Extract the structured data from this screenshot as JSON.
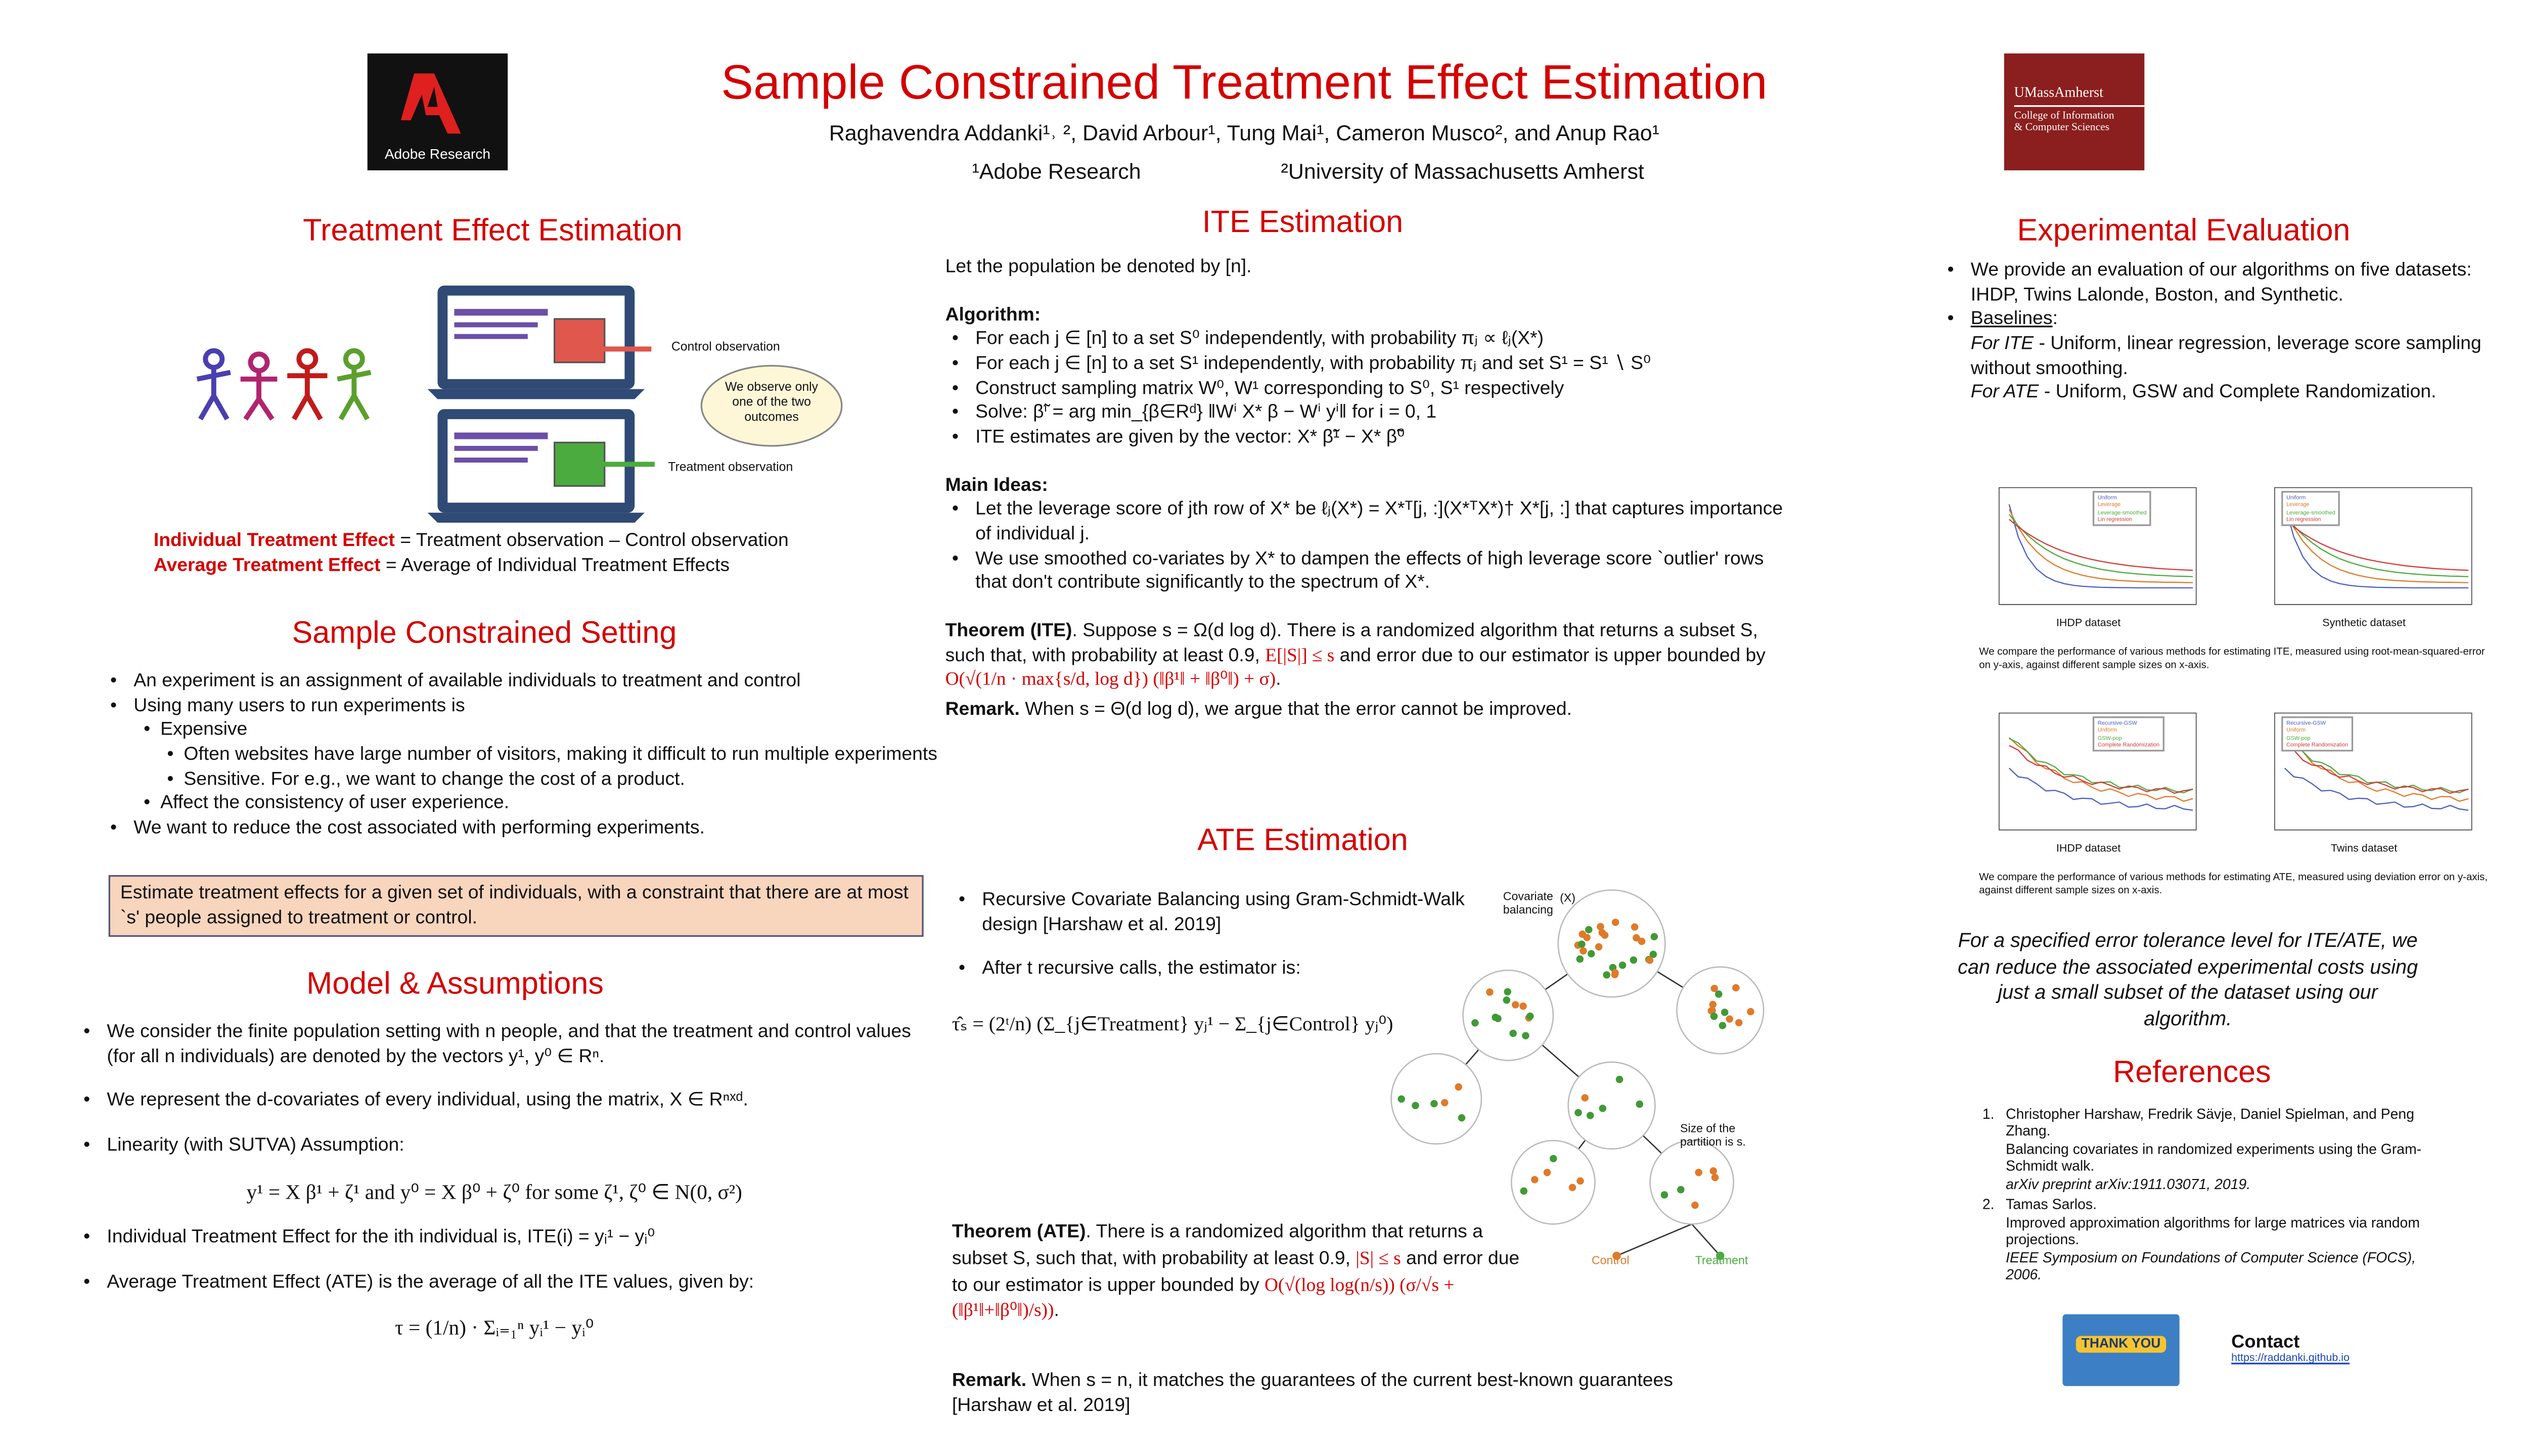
{
  "header": {
    "title": "Sample Constrained Treatment Effect Estimation",
    "authors": "Raghavendra Addanki¹˒ ², David Arbour¹, Tung Mai¹, Cameron Musco², and Anup Rao¹",
    "affiliations": [
      "¹Adobe Research",
      "²University of Massachusetts Amherst"
    ],
    "logo_left": "Adobe Research",
    "logo_right": [
      "UMassAmherst",
      "College of Information",
      "& Computer Sciences"
    ]
  },
  "left": {
    "treatment": {
      "title": "Treatment Effect Estimation",
      "figure_labels": [
        "Control observation",
        "We observe only one of the two outcomes",
        "Treatment observation"
      ],
      "definitions": [
        {
          "term": "Individual Treatment Effect",
          "text": " = Treatment observation – Control observation"
        },
        {
          "term": "Average Treatment Effect",
          "text": " = Average of Individual Treatment Effects"
        }
      ]
    },
    "setting": {
      "title": "Sample Constrained Setting",
      "bullets": [
        {
          "level": 1,
          "text": "An experiment is an assignment of available individuals to treatment and control"
        },
        {
          "level": 1,
          "text": "Using many users to run experiments is"
        },
        {
          "level": 2,
          "text": "Expensive"
        },
        {
          "level": 3,
          "text": "Often websites have large number of visitors, making it difficult to run multiple experiments"
        },
        {
          "level": 3,
          "text": "Sensitive. For e.g., we want to change the cost of a product."
        },
        {
          "level": 2,
          "text": "Affect the consistency of user experience."
        },
        {
          "level": 1,
          "text": "We want to reduce the cost associated with performing experiments."
        }
      ],
      "callout": "Estimate treatment effects for a given set of individuals, with a constraint that there are at most `s' people assigned to treatment or control."
    },
    "model": {
      "title": "Model & Assumptions",
      "items": [
        {
          "style": "bullet",
          "text": "We consider the finite population setting with n people, and that the treatment and control values (for all n individuals) are denoted by the vectors y¹, y⁰ ∈ Rⁿ."
        },
        {
          "style": "bullet",
          "text": "We represent the d-covariates of every individual, using the matrix, X ∈ Rⁿˣᵈ."
        },
        {
          "style": "bullet",
          "text": "Linearity (with SUTVA) Assumption:"
        },
        {
          "style": "equation",
          "text": "y¹ = X β¹ + ζ¹ and y⁰ = X β⁰ + ζ⁰ for some ζ¹, ζ⁰ ∈ N(0, σ²)"
        },
        {
          "style": "bullet",
          "text": "Individual Treatment Effect for the ith individual is, ITE(i) = yᵢ¹ − yᵢ⁰"
        },
        {
          "style": "bullet",
          "text": "Average Treatment Effect (ATE) is the average of all the ITE values, given by:"
        },
        {
          "style": "equation",
          "text": "τ = (1/n) · Σᵢ₌₁ⁿ yᵢ¹ − yᵢ⁰"
        }
      ]
    }
  },
  "middle": {
    "ite": {
      "title": "ITE Estimation",
      "intro": "Let the population be denoted by [n].",
      "algorithm_heading": "Algorithm:",
      "algorithm": [
        "For each j ∈ [n] to a set S⁰ independently, with probability πⱼ ∝ ℓⱼ(X*)",
        "For each j ∈ [n] to a set S¹ independently, with probability πⱼ and set S¹ = S¹ ∖ S⁰",
        "Construct sampling matrix W⁰, W¹ corresponding to S⁰, S¹ respectively",
        "Solve: β̃ⁱ = arg min_{β∈Rᵈ} ‖Wⁱ X* β − Wⁱ yⁱ‖ for i = 0, 1",
        "ITE estimates are given by the vector: X* β̃¹ − X* β̃⁰"
      ],
      "ideas_heading": "Main Ideas:",
      "ideas": [
        "Let the leverage score of jth row of X* be ℓⱼ(X*) = X*ᵀ[j, :](X*ᵀX*)† X*[j, :] that captures importance of individual j.",
        "We use smoothed co-variates by X* to dampen the effects of high leverage score `outlier' rows that don't contribute significantly to the spectrum of X*."
      ],
      "theorem": [
        "Theorem (ITE)",
        ". Suppose s = Ω(d log d). There is a randomized algorithm that returns a subset S, such that, with probability at least 0.9, ",
        "E[|S|] ≤ s",
        " and error due to our estimator is upper bounded by ",
        "O(√(1/n · max{s/d, log d}) (‖β¹‖ + ‖β⁰‖) + σ)",
        "."
      ],
      "remark": [
        "Remark.",
        " When s = Θ(d log d), we argue that the error cannot be improved."
      ]
    },
    "ate": {
      "title": "ATE Estimation",
      "bullets": [
        "Recursive Covariate Balancing using Gram-Schmidt-Walk design [Harshaw et al. 2019]",
        "After t recursive calls, the estimator is:"
      ],
      "estimator": "τ̂ₛ = (2ᵗ/n) (Σ_{j∈Treatment} yⱼ¹ − Σ_{j∈Control} yⱼ⁰)",
      "figure_labels": [
        "Covariate balancing",
        "(X)",
        "Size of the partition is s.",
        "Control",
        "Treatment"
      ],
      "theorem": [
        "Theorem (ATE)",
        ". There is a randomized algorithm that returns a subset S, such that, with probability at least 0.9, ",
        "|S| ≤ s",
        " and error due to our estimator is upper bounded by ",
        "O(√(log log(n/s)) (σ/√s + (‖β¹‖+‖β⁰‖)/s))",
        "."
      ],
      "remark": [
        "Remark.",
        " When s = n, it matches the guarantees of the current best-known guarantees [Harshaw et al. 2019]"
      ]
    }
  },
  "right": {
    "evaluation": {
      "title": "Experimental Evaluation",
      "bullet": "We provide an evaluation of our algorithms on five datasets: IHDP, Twins Lalonde, Boston, and Synthetic.",
      "baselines": "Baselines",
      "baselines_colon": ":",
      "ite_label": "For ITE",
      "ite_text": " -  Uniform, linear regression, leverage score sampling without smoothing.",
      "ate_label": "For ATE",
      "ate_text": " - Uniform, GSW and Complete Randomization.",
      "plots": [
        {
          "title": "IHDP dataset",
          "legend": [
            "Uniform",
            "Leverage",
            "Leverage-smoothed",
            "Lin regression"
          ]
        },
        {
          "title": "Synthetic dataset",
          "legend": [
            "Uniform",
            "Leverage",
            "Leverage-smoothed",
            "Lin regression"
          ]
        },
        {
          "title": "IHDP dataset",
          "legend": [
            "Recursive-GSW",
            "Uniform",
            "GSW-pop",
            "Complete Randomization"
          ]
        },
        {
          "title": "Twins dataset",
          "legend": [
            "Recursive-GSW",
            "Uniform",
            "GSW-pop",
            "Complete Randomization"
          ]
        }
      ],
      "captions": [
        "We compare the performance of various methods for estimating ITE, measured using root-mean-squared-error on y-axis, against different sample sizes on x-axis.",
        "We compare the performance of various methods for estimating ATE, measured using deviation error on y-axis, against different sample sizes on x-axis."
      ],
      "conclusion": "For a specified error tolerance level for ITE/ATE, we can reduce the associated experimental costs using just a small subset of the dataset using our algorithm."
    },
    "references": {
      "title": "References",
      "items": [
        {
          "authors": "Christopher Harshaw, Fredrik Sävje, Daniel Spielman, and Peng Zhang.",
          "title": "Balancing covariates in randomized experiments using the Gram-Schmidt walk.",
          "venue": "arXiv preprint arXiv:1911.03071, 2019."
        },
        {
          "authors": "Tamas Sarlos.",
          "title": "Improved approximation algorithms for large matrices via random projections.",
          "venue": "IEEE Symposium on Foundations of Computer Science (FOCS), 2006."
        }
      ]
    },
    "contact": {
      "badge": "THANK YOU",
      "label": "Contact",
      "url": "https://raddanki.github.io"
    }
  }
}
